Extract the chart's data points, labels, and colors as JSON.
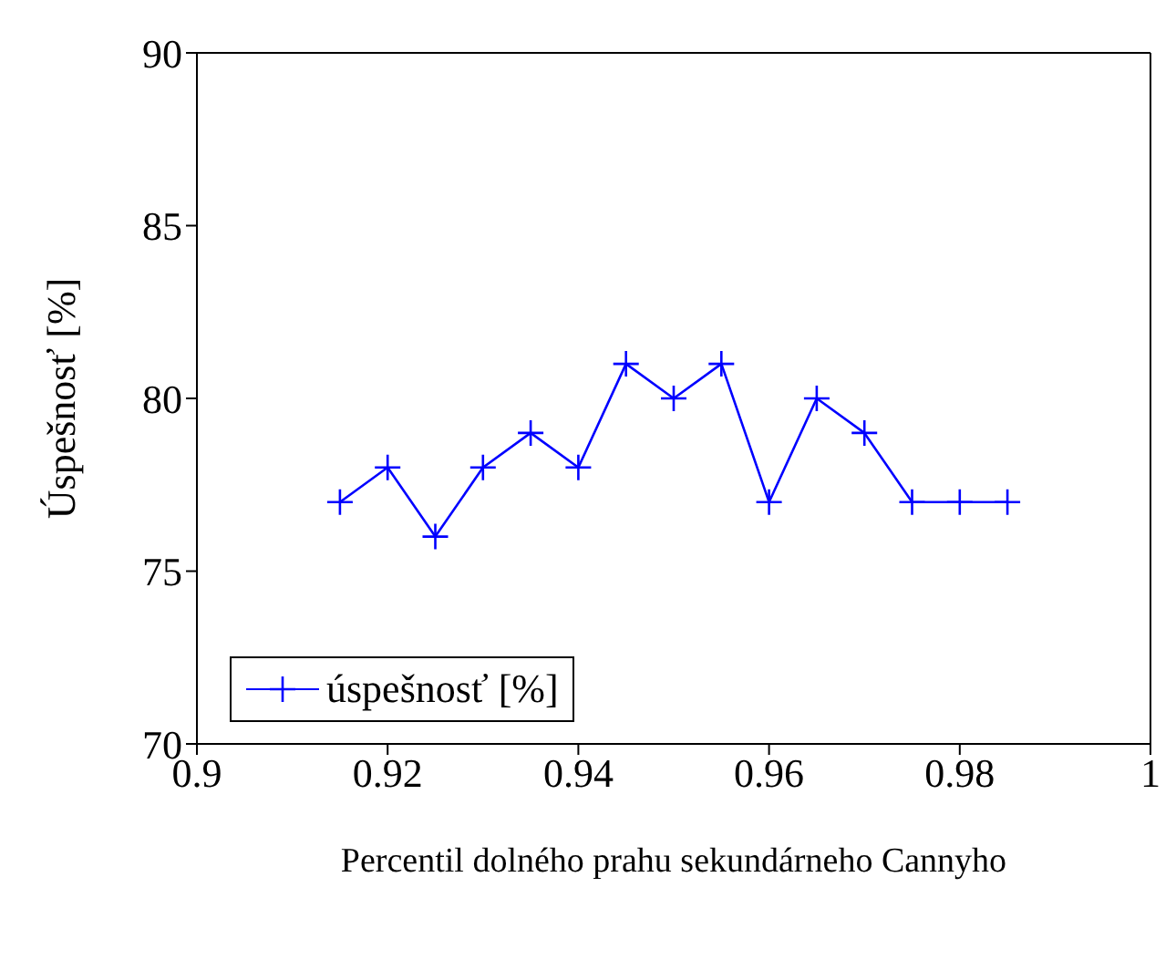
{
  "chart_data": {
    "type": "line",
    "xlabel": "Percentil dolného prahu sekundárneho Cannyho",
    "ylabel": "Úspešnosť [%]",
    "x": [
      0.915,
      0.92,
      0.925,
      0.93,
      0.935,
      0.94,
      0.945,
      0.95,
      0.955,
      0.96,
      0.965,
      0.97,
      0.975,
      0.98,
      0.985
    ],
    "series": [
      {
        "name": "úspešnosť [%]",
        "color": "#0000ff",
        "values": [
          77,
          78,
          76,
          78,
          79,
          78,
          81,
          80,
          81,
          77,
          80,
          79,
          77,
          77,
          77
        ]
      }
    ],
    "xlim": [
      0.9,
      1
    ],
    "xticks": [
      0.9,
      0.92,
      0.94,
      0.96,
      0.98,
      1
    ],
    "ylim": [
      70,
      90
    ],
    "yticks": [
      70,
      75,
      80,
      85,
      90
    ],
    "marker": "cross",
    "line_style": "solid",
    "legend": "bottom left",
    "grid": false
  }
}
